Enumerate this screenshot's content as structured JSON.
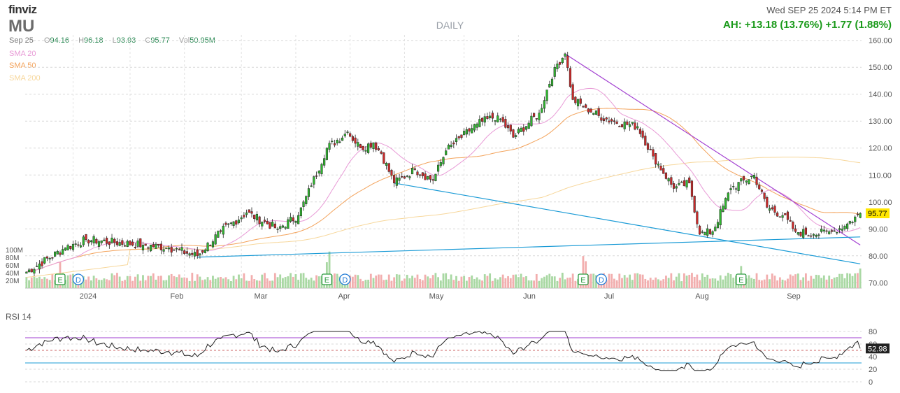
{
  "header": {
    "logo": "finviz",
    "ticker": "MU",
    "period": "DAILY",
    "datetime": "Wed SEP 25 2024 5:14 PM ET",
    "after_hours": "AH: +13.18 (13.76%)  +1.77 (1.88%)"
  },
  "ohlc": {
    "date": "Sep 25",
    "open_label": "O",
    "open": "94.16",
    "high_label": "H",
    "high": "96.18",
    "low_label": "L",
    "low": "93.93",
    "close_label": "C",
    "close": "95.77",
    "vol_label": "Vol",
    "volume": "50.95M"
  },
  "legend": [
    {
      "name": "SMA 20",
      "color": "#e89ad6"
    },
    {
      "name": "SMA 50",
      "color": "#f3a35c"
    },
    {
      "name": "SMA 200",
      "color": "#f7d79b"
    }
  ],
  "colors": {
    "up": "#2fb82f",
    "down": "#cf2a2a",
    "vol_up": "#a9d8a3",
    "vol_down": "#f2aeae",
    "trendline_purple": "#a23fd1",
    "trendline_blue": "#1b9bd6",
    "rsi_line": "#222222",
    "rsi_overbought": "#a23fd1",
    "rsi_oversold": "#1b9bd6"
  },
  "chart_data": [
    {
      "type": "candlestick",
      "title": "MU",
      "ylim": [
        68,
        162
      ],
      "yticks": [
        "160.00",
        "150.00",
        "140.00",
        "130.00",
        "120.00",
        "110.00",
        "100.00",
        "90.00",
        "80.00",
        "70.00"
      ],
      "xlabels": [
        "2024",
        "Feb",
        "Mar",
        "Apr",
        "May",
        "Jun",
        "Jul",
        "Aug",
        "Sep"
      ],
      "last_price": "95.77",
      "volume_ticks": [
        "100M",
        "80M",
        "60M",
        "40M",
        "20M"
      ],
      "events": [
        {
          "label": "E",
          "kind": "earnings",
          "index": 13
        },
        {
          "label": "D",
          "kind": "dividend",
          "index": 20
        },
        {
          "label": "E",
          "kind": "earnings",
          "index": 116
        },
        {
          "label": "D",
          "kind": "dividend",
          "index": 123
        },
        {
          "label": "E",
          "kind": "earnings",
          "index": 215
        },
        {
          "label": "D",
          "kind": "dividend",
          "index": 222
        },
        {
          "label": "E",
          "kind": "earnings",
          "index": 276
        }
      ],
      "key_points": [
        {
          "index": 0,
          "close": 74
        },
        {
          "index": 15,
          "close": 83
        },
        {
          "index": 23,
          "close": 86
        },
        {
          "index": 45,
          "close": 84
        },
        {
          "index": 55,
          "close": 83
        },
        {
          "index": 66,
          "close": 80
        },
        {
          "index": 75,
          "close": 89
        },
        {
          "index": 85,
          "close": 96
        },
        {
          "index": 97,
          "close": 90
        },
        {
          "index": 105,
          "close": 95
        },
        {
          "index": 110,
          "close": 106
        },
        {
          "index": 116,
          "close": 120
        },
        {
          "index": 124,
          "close": 126
        },
        {
          "index": 129,
          "close": 120
        },
        {
          "index": 134,
          "close": 122
        },
        {
          "index": 137,
          "close": 118
        },
        {
          "index": 142,
          "close": 107
        },
        {
          "index": 150,
          "close": 112
        },
        {
          "index": 157,
          "close": 108
        },
        {
          "index": 162,
          "close": 119
        },
        {
          "index": 174,
          "close": 129
        },
        {
          "index": 182,
          "close": 132
        },
        {
          "index": 188,
          "close": 124
        },
        {
          "index": 198,
          "close": 133
        },
        {
          "index": 204,
          "close": 150
        },
        {
          "index": 208,
          "close": 155
        },
        {
          "index": 211,
          "close": 138
        },
        {
          "index": 216,
          "close": 135
        },
        {
          "index": 221,
          "close": 132
        },
        {
          "index": 226,
          "close": 130
        },
        {
          "index": 236,
          "close": 128
        },
        {
          "index": 242,
          "close": 117
        },
        {
          "index": 250,
          "close": 105
        },
        {
          "index": 256,
          "close": 107
        },
        {
          "index": 260,
          "close": 88
        },
        {
          "index": 265,
          "close": 89
        },
        {
          "index": 272,
          "close": 105
        },
        {
          "index": 281,
          "close": 110
        },
        {
          "index": 286,
          "close": 98
        },
        {
          "index": 292,
          "close": 95
        },
        {
          "index": 297,
          "close": 89
        },
        {
          "index": 304,
          "close": 88
        },
        {
          "index": 311,
          "close": 89
        },
        {
          "index": 316,
          "close": 91
        },
        {
          "index": 322,
          "close": 95.77
        }
      ],
      "trendlines": [
        {
          "color": "purple",
          "from": {
            "index": 208,
            "value": 155
          },
          "to": {
            "index": 322,
            "value": 84
          }
        },
        {
          "color": "blue",
          "from": {
            "index": 142,
            "value": 107
          },
          "to": {
            "index": 322,
            "value": 77
          }
        },
        {
          "color": "blue",
          "from": {
            "index": 66,
            "value": 79.5
          },
          "to": {
            "index": 322,
            "value": 87
          }
        }
      ]
    },
    {
      "type": "line",
      "title": "RSI 14",
      "ylim": [
        0,
        100
      ],
      "yticks": [
        "80",
        "60",
        "40",
        "20",
        "0"
      ],
      "overbought": 70,
      "oversold": 30,
      "last_value": "52.98"
    }
  ]
}
